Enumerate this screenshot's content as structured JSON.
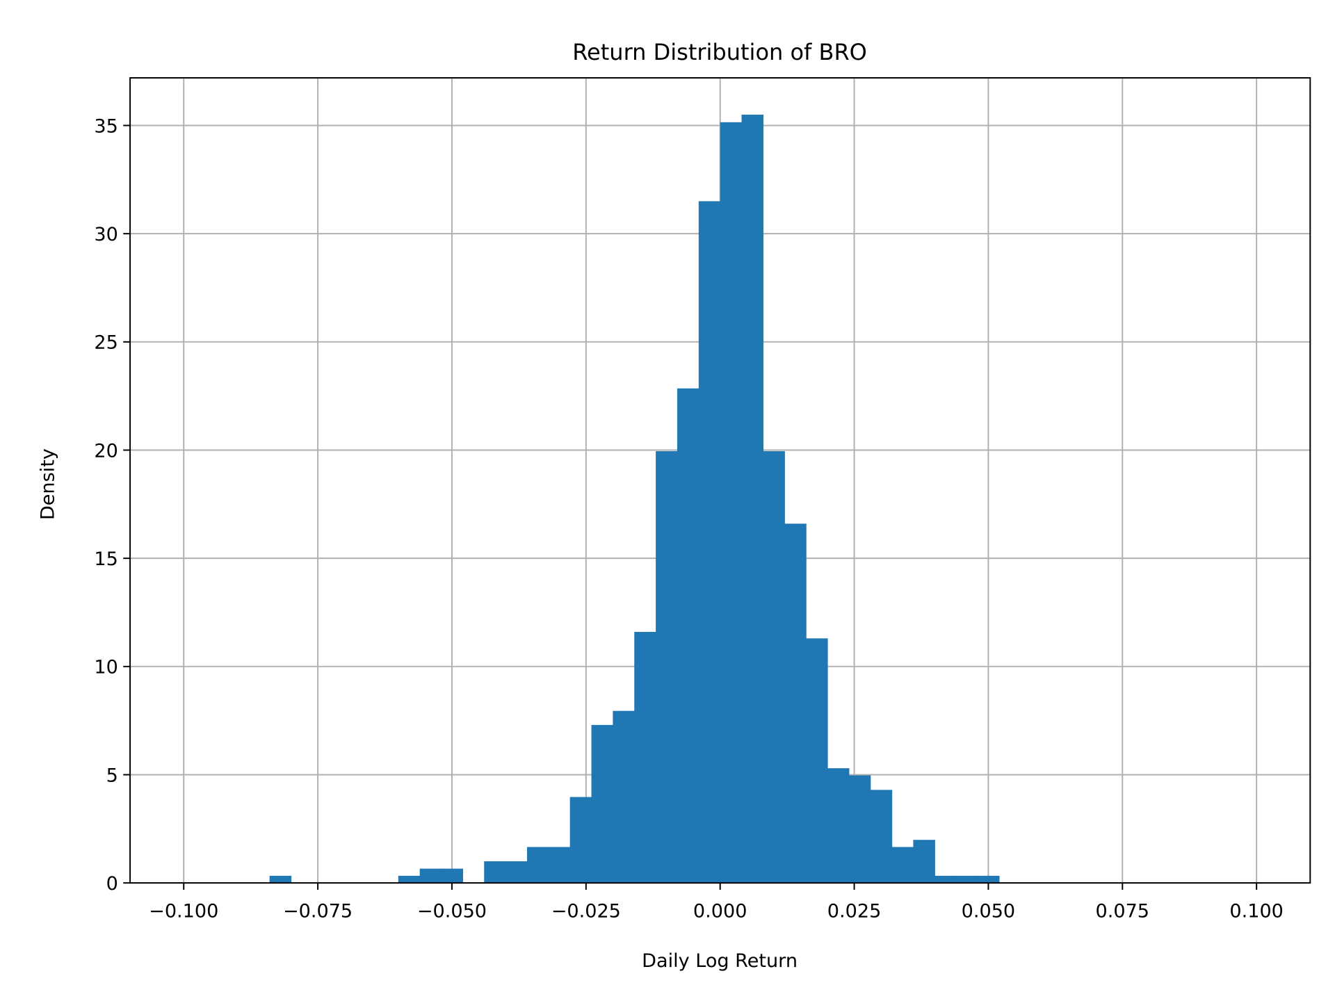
{
  "chart_data": {
    "type": "bar",
    "histogram": true,
    "title": "Return Distribution of BRO",
    "xlabel": "Daily Log Return",
    "ylabel": "Density",
    "xlim": [
      -0.11,
      0.11
    ],
    "ylim": [
      0,
      37.2
    ],
    "grid": true,
    "bar_color": "#1f77b4",
    "bin_start": -0.084,
    "bin_width": 0.004,
    "values": [
      0.33,
      0,
      0,
      0,
      0,
      0,
      0.33,
      0.66,
      0.66,
      0,
      1.0,
      1.0,
      1.66,
      1.66,
      3.97,
      7.3,
      7.95,
      11.6,
      19.95,
      22.85,
      31.5,
      35.15,
      35.5,
      19.95,
      16.6,
      11.3,
      5.3,
      4.97,
      4.3,
      1.66,
      1.99,
      0.33,
      0.33,
      0.33
    ],
    "xticks": [
      -0.1,
      -0.075,
      -0.05,
      -0.025,
      0,
      0.025,
      0.05,
      0.075,
      0.1
    ],
    "xtick_labels": [
      "−0.100",
      "−0.075",
      "−0.050",
      "−0.025",
      "0.000",
      "0.025",
      "0.050",
      "0.075",
      "0.100"
    ],
    "yticks": [
      0,
      5,
      10,
      15,
      20,
      25,
      30,
      35
    ],
    "ytick_labels": [
      "0",
      "5",
      "10",
      "15",
      "20",
      "25",
      "30",
      "35"
    ]
  }
}
